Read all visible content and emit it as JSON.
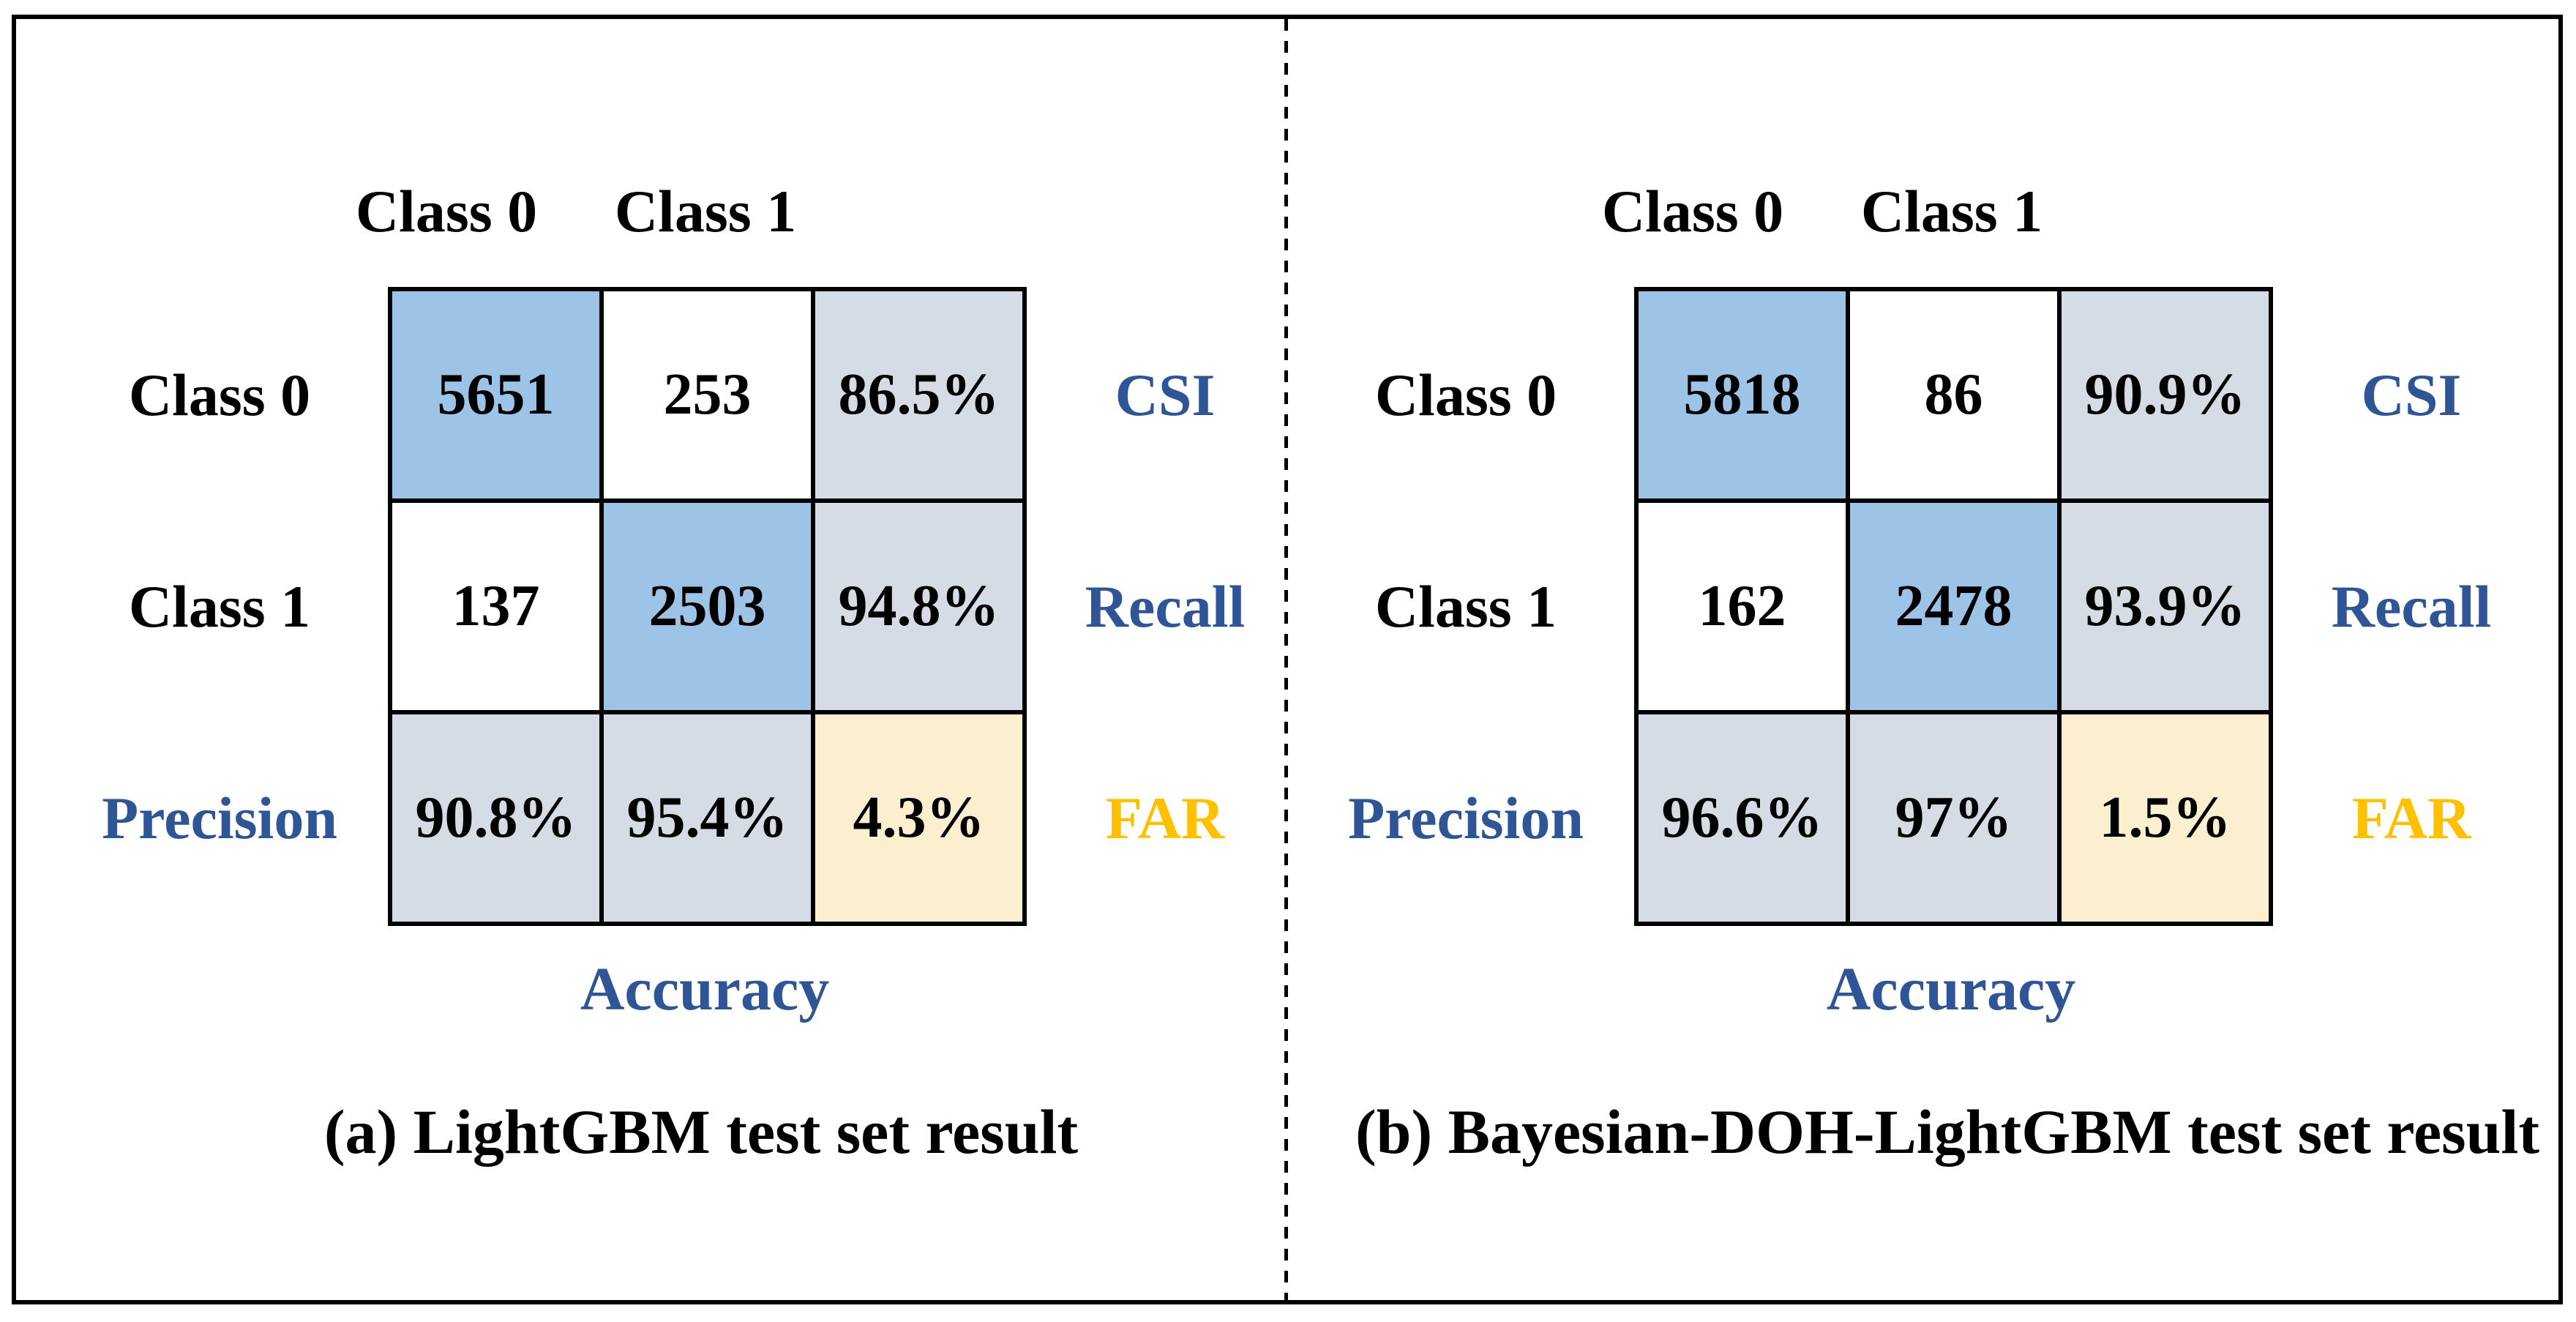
{
  "panels": [
    {
      "caption": "(a) LightGBM test set result",
      "col_headers": [
        "Class 0",
        "Class 1"
      ],
      "row_headers": [
        "Class 0",
        "Class 1",
        "Precision"
      ],
      "side_labels": [
        "CSI",
        "Recall",
        "FAR"
      ],
      "bottom_label": "Accuracy",
      "cells": [
        [
          "5651",
          "253",
          "86.5%"
        ],
        [
          "137",
          "2503",
          "94.8%"
        ],
        [
          "90.8%",
          "95.4%",
          "4.3%"
        ]
      ]
    },
    {
      "caption": "(b) Bayesian-DOH-LightGBM test set result",
      "col_headers": [
        "Class 0",
        "Class 1"
      ],
      "row_headers": [
        "Class 0",
        "Class 1",
        "Precision"
      ],
      "side_labels": [
        "CSI",
        "Recall",
        "FAR"
      ],
      "bottom_label": "Accuracy",
      "cells": [
        [
          "5818",
          "86",
          "90.9%"
        ],
        [
          "162",
          "2478",
          "93.9%"
        ],
        [
          "96.6%",
          "97%",
          "1.5%"
        ]
      ]
    }
  ],
  "colors": {
    "diagonal_cell_blue": "#9DC3E6",
    "metric_cell_gray": "#D6DCE5",
    "far_cell_cream": "#FCEFD0",
    "metric_label_blue": "#2F5597",
    "far_label_gold": "#FFC000",
    "text_black": "#000000"
  },
  "chart_data": [
    {
      "type": "heatmap",
      "title": "(a) LightGBM test set result",
      "x_labels": [
        "Class 0",
        "Class 1"
      ],
      "y_labels": [
        "Class 0",
        "Class 1"
      ],
      "matrix": [
        [
          5651,
          253
        ],
        [
          137,
          2503
        ]
      ],
      "metrics": {
        "CSI": "86.5%",
        "Recall": "94.8%",
        "Precision_class0": "90.8%",
        "Precision_class1": "95.4%",
        "FAR": "4.3%",
        "bottom_axis_label": "Accuracy"
      }
    },
    {
      "type": "heatmap",
      "title": "(b) Bayesian-DOH-LightGBM test set result",
      "x_labels": [
        "Class 0",
        "Class 1"
      ],
      "y_labels": [
        "Class 0",
        "Class 1"
      ],
      "matrix": [
        [
          5818,
          86
        ],
        [
          162,
          2478
        ]
      ],
      "metrics": {
        "CSI": "90.9%",
        "Recall": "93.9%",
        "Precision_class0": "96.6%",
        "Precision_class1": "97%",
        "FAR": "1.5%",
        "bottom_axis_label": "Accuracy"
      }
    }
  ]
}
